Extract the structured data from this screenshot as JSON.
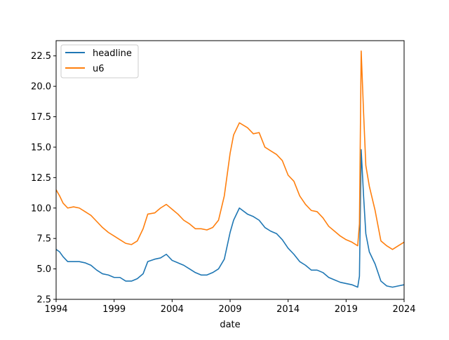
{
  "chart_data": {
    "type": "line",
    "xlabel": "date",
    "ylabel": "",
    "xlim": [
      1994,
      2024
    ],
    "ylim": [
      2.5,
      23.75
    ],
    "x_ticks": [
      1994,
      1999,
      2004,
      2009,
      2014,
      2019,
      2024
    ],
    "y_ticks": [
      2.5,
      5.0,
      7.5,
      10.0,
      12.5,
      15.0,
      17.5,
      20.0,
      22.5
    ],
    "x_tick_labels": [
      "1994",
      "1999",
      "2004",
      "2009",
      "2014",
      "2019",
      "2024"
    ],
    "y_tick_labels": [
      "2.5",
      "5.0",
      "7.5",
      "10.0",
      "12.5",
      "15.0",
      "17.5",
      "20.0",
      "22.5"
    ],
    "grid": false,
    "legend_position": "top-left",
    "series": [
      {
        "name": "headline",
        "color": "#1f77b4",
        "points": [
          [
            1994.0,
            6.6
          ],
          [
            1994.3,
            6.4
          ],
          [
            1994.6,
            6.0
          ],
          [
            1995.0,
            5.6
          ],
          [
            1995.5,
            5.6
          ],
          [
            1996.0,
            5.6
          ],
          [
            1996.5,
            5.5
          ],
          [
            1997.0,
            5.3
          ],
          [
            1997.5,
            4.9
          ],
          [
            1998.0,
            4.6
          ],
          [
            1998.5,
            4.5
          ],
          [
            1999.0,
            4.3
          ],
          [
            1999.5,
            4.3
          ],
          [
            2000.0,
            4.0
          ],
          [
            2000.5,
            4.0
          ],
          [
            2001.0,
            4.2
          ],
          [
            2001.5,
            4.6
          ],
          [
            2001.9,
            5.6
          ],
          [
            2002.5,
            5.8
          ],
          [
            2003.0,
            5.9
          ],
          [
            2003.5,
            6.2
          ],
          [
            2004.0,
            5.7
          ],
          [
            2004.5,
            5.5
          ],
          [
            2005.0,
            5.3
          ],
          [
            2005.5,
            5.0
          ],
          [
            2006.0,
            4.7
          ],
          [
            2006.5,
            4.5
          ],
          [
            2007.0,
            4.5
          ],
          [
            2007.5,
            4.7
          ],
          [
            2008.0,
            5.0
          ],
          [
            2008.5,
            5.8
          ],
          [
            2009.0,
            8.0
          ],
          [
            2009.3,
            9.0
          ],
          [
            2009.8,
            10.0
          ],
          [
            2010.5,
            9.5
          ],
          [
            2011.0,
            9.3
          ],
          [
            2011.5,
            9.0
          ],
          [
            2012.0,
            8.4
          ],
          [
            2012.5,
            8.1
          ],
          [
            2013.0,
            7.9
          ],
          [
            2013.5,
            7.4
          ],
          [
            2014.0,
            6.7
          ],
          [
            2014.5,
            6.2
          ],
          [
            2015.0,
            5.6
          ],
          [
            2015.5,
            5.3
          ],
          [
            2016.0,
            4.9
          ],
          [
            2016.5,
            4.9
          ],
          [
            2017.0,
            4.7
          ],
          [
            2017.5,
            4.3
          ],
          [
            2018.0,
            4.1
          ],
          [
            2018.5,
            3.9
          ],
          [
            2019.0,
            3.8
          ],
          [
            2019.5,
            3.7
          ],
          [
            2020.0,
            3.5
          ],
          [
            2020.15,
            4.4
          ],
          [
            2020.3,
            14.8
          ],
          [
            2020.5,
            11.1
          ],
          [
            2020.7,
            7.9
          ],
          [
            2021.0,
            6.4
          ],
          [
            2021.5,
            5.4
          ],
          [
            2022.0,
            4.0
          ],
          [
            2022.5,
            3.6
          ],
          [
            2023.0,
            3.5
          ],
          [
            2023.5,
            3.6
          ],
          [
            2024.0,
            3.7
          ]
        ]
      },
      {
        "name": "u6",
        "color": "#ff7f0e",
        "points": [
          [
            1994.0,
            11.5
          ],
          [
            1994.3,
            11.0
          ],
          [
            1994.6,
            10.4
          ],
          [
            1995.0,
            10.0
          ],
          [
            1995.5,
            10.1
          ],
          [
            1996.0,
            10.0
          ],
          [
            1996.5,
            9.7
          ],
          [
            1997.0,
            9.4
          ],
          [
            1997.5,
            8.9
          ],
          [
            1998.0,
            8.4
          ],
          [
            1998.5,
            8.0
          ],
          [
            1999.0,
            7.7
          ],
          [
            1999.5,
            7.4
          ],
          [
            2000.0,
            7.1
          ],
          [
            2000.5,
            7.0
          ],
          [
            2001.0,
            7.3
          ],
          [
            2001.5,
            8.3
          ],
          [
            2001.9,
            9.5
          ],
          [
            2002.5,
            9.6
          ],
          [
            2003.0,
            10.0
          ],
          [
            2003.5,
            10.3
          ],
          [
            2004.0,
            9.9
          ],
          [
            2004.5,
            9.5
          ],
          [
            2005.0,
            9.0
          ],
          [
            2005.5,
            8.7
          ],
          [
            2006.0,
            8.3
          ],
          [
            2006.5,
            8.3
          ],
          [
            2007.0,
            8.2
          ],
          [
            2007.5,
            8.4
          ],
          [
            2008.0,
            9.0
          ],
          [
            2008.5,
            11.0
          ],
          [
            2009.0,
            14.5
          ],
          [
            2009.3,
            16.0
          ],
          [
            2009.8,
            17.0
          ],
          [
            2010.5,
            16.6
          ],
          [
            2011.0,
            16.1
          ],
          [
            2011.5,
            16.2
          ],
          [
            2012.0,
            15.0
          ],
          [
            2012.5,
            14.7
          ],
          [
            2013.0,
            14.4
          ],
          [
            2013.5,
            13.9
          ],
          [
            2014.0,
            12.7
          ],
          [
            2014.5,
            12.2
          ],
          [
            2015.0,
            11.0
          ],
          [
            2015.5,
            10.3
          ],
          [
            2016.0,
            9.8
          ],
          [
            2016.5,
            9.7
          ],
          [
            2017.0,
            9.2
          ],
          [
            2017.5,
            8.5
          ],
          [
            2018.0,
            8.1
          ],
          [
            2018.5,
            7.7
          ],
          [
            2019.0,
            7.4
          ],
          [
            2019.5,
            7.2
          ],
          [
            2020.0,
            6.9
          ],
          [
            2020.15,
            8.7
          ],
          [
            2020.3,
            22.9
          ],
          [
            2020.5,
            18.0
          ],
          [
            2020.7,
            13.5
          ],
          [
            2021.0,
            11.8
          ],
          [
            2021.5,
            9.8
          ],
          [
            2022.0,
            7.3
          ],
          [
            2022.5,
            6.9
          ],
          [
            2023.0,
            6.6
          ],
          [
            2023.5,
            6.9
          ],
          [
            2024.0,
            7.2
          ]
        ]
      }
    ]
  }
}
